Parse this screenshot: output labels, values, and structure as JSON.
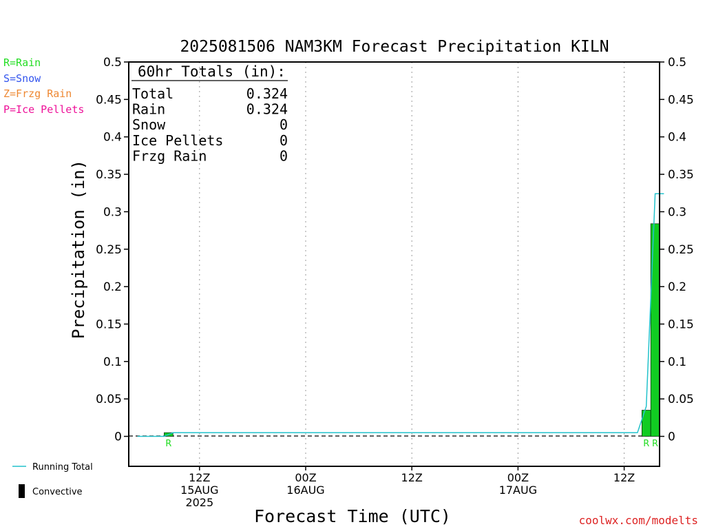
{
  "chart_data": {
    "type": "bar",
    "title": "2025081506 NAM3KM Forecast Precipitation KILN",
    "xlabel": "Forecast Time (UTC)",
    "ylabel": "Precipitation (in)",
    "ylim": [
      -0.04,
      0.5
    ],
    "y_ticks": [
      "0",
      "0.05",
      "0.1",
      "0.15",
      "0.2",
      "0.25",
      "0.3",
      "0.35",
      "0.4",
      "0.45",
      "0.5"
    ],
    "xlim_hours": [
      4,
      64
    ],
    "x_ticks": [
      {
        "hour": 12,
        "line1": "12Z",
        "line2": "15AUG",
        "line3": "2025"
      },
      {
        "hour": 24,
        "line1": "00Z",
        "line2": "16AUG",
        "line3": ""
      },
      {
        "hour": 36,
        "line1": "12Z",
        "line2": "",
        "line3": ""
      },
      {
        "hour": 48,
        "line1": "00Z",
        "line2": "17AUG",
        "line3": ""
      },
      {
        "hour": 60,
        "line1": "12Z",
        "line2": "",
        "line3": ""
      }
    ],
    "legend_left": [
      {
        "label": "R=Rain",
        "color": "#22dd22"
      },
      {
        "label": "S=Snow",
        "color": "#3355ee"
      },
      {
        "label": "Z=Frzg Rain",
        "color": "#ee8833"
      },
      {
        "label": "P=Ice Pellets",
        "color": "#ee1199"
      }
    ],
    "legend_bottom": [
      {
        "label": "Running Total",
        "color": "#22c2cc"
      },
      {
        "label": "Convective",
        "color": "#000000"
      }
    ],
    "totals": {
      "heading": "60hr Totals (in):",
      "rows": [
        {
          "label": "Total",
          "value": "0.324"
        },
        {
          "label": "Rain",
          "value": "0.324"
        },
        {
          "label": "Snow",
          "value": "0"
        },
        {
          "label": "Ice Pellets",
          "value": "0"
        },
        {
          "label": "Frzg Rain",
          "value": "0"
        }
      ]
    },
    "series": [
      {
        "name": "Rain",
        "type": "bar",
        "color": "#11cc22",
        "bars": [
          {
            "start_hour": 8,
            "end_hour": 9,
            "value": 0.005,
            "ptype": "R"
          },
          {
            "start_hour": 62,
            "end_hour": 63,
            "value": 0.035,
            "ptype": "R"
          },
          {
            "start_hour": 63,
            "end_hour": 64,
            "value": 0.284,
            "ptype": "R"
          }
        ]
      },
      {
        "name": "Running Total",
        "type": "line",
        "color": "#22c2cc",
        "points": [
          [
            5,
            0
          ],
          [
            8,
            0
          ],
          [
            9,
            0.005
          ],
          [
            61.5,
            0.005
          ],
          [
            62.5,
            0.04
          ],
          [
            63.5,
            0.324
          ],
          [
            64.5,
            0.324
          ]
        ]
      }
    ],
    "credit": "coolwx.com/modelts"
  }
}
